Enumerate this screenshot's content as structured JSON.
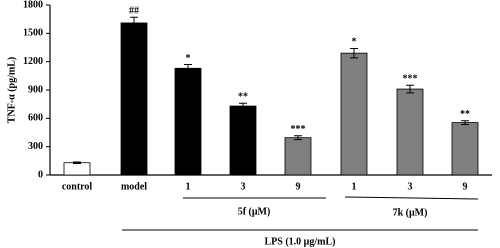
{
  "chart_data": {
    "type": "bar",
    "y_label": "TNF-α (pg/mL)",
    "categories": [
      "control",
      "model",
      "1",
      "3",
      "9",
      "1",
      "3",
      "9"
    ],
    "values": [
      130,
      1610,
      1130,
      730,
      395,
      1290,
      910,
      555
    ],
    "errors": [
      8,
      60,
      40,
      30,
      20,
      50,
      40,
      20
    ],
    "annotations": [
      "",
      "##",
      "*",
      "**",
      "***",
      "*",
      "***",
      "**"
    ],
    "colors": [
      "#ffffff",
      "#000000",
      "#000000",
      "#000000",
      "#7f7f7f",
      "#7f7f7f",
      "#7f7f7f",
      "#7f7f7f"
    ],
    "groups": [
      "5f (μM)",
      "7k (μM)"
    ],
    "treatment": "LPS (1.0 μg/mL)",
    "ylim": [
      0,
      1800
    ],
    "yticks": [
      0,
      300,
      600,
      900,
      1200,
      1500,
      1800
    ]
  }
}
